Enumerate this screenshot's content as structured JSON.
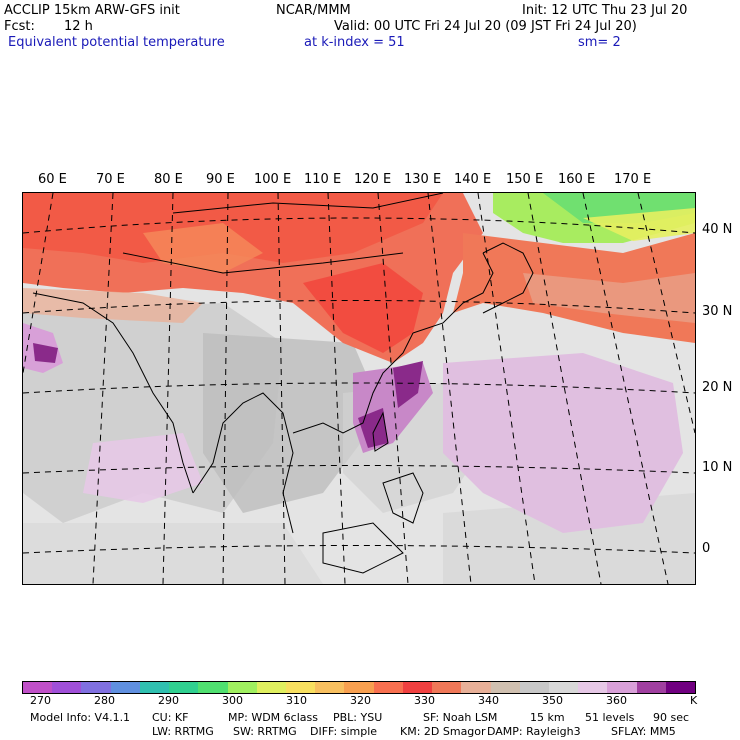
{
  "header": {
    "model": "ACCLIP 15km ARW-GFS init",
    "org": "NCAR/MMM",
    "init": "Init: 12 UTC Thu 23 Jul 20",
    "fcst_label": "Fcst:",
    "fcst_value": "12 h",
    "valid": "Valid: 00 UTC Fri 24 Jul 20 (09 JST Fri 24 Jul 20)",
    "field": "Equivalent potential temperature",
    "level": "at k-index =  51",
    "smooth": "sm= 2"
  },
  "map": {
    "lon_labels": [
      "60 E",
      "70 E",
      "80 E",
      "90 E",
      "100 E",
      "110 E",
      "120 E",
      "130 E",
      "140 E",
      "150 E",
      "160 E",
      "170 E"
    ],
    "lat_labels": [
      "40 N",
      "30 N",
      "20 N",
      "10 N",
      "0"
    ]
  },
  "colorbar": {
    "colors": [
      "#c050c8",
      "#a050d8",
      "#8070e0",
      "#6090e0",
      "#30c0b0",
      "#30d090",
      "#50e070",
      "#a0f060",
      "#e0f060",
      "#f8e060",
      "#f8c060",
      "#f8a050",
      "#f87050",
      "#f04040",
      "#f07858",
      "#e8b098",
      "#d0c0b0",
      "#c8c8c8",
      "#d8d8d8",
      "#e6c8e6",
      "#d8a0d8",
      "#a040a0",
      "#700080"
    ],
    "ticks": [
      "270",
      "280",
      "290",
      "300",
      "310",
      "320",
      "330",
      "340",
      "350",
      "360"
    ],
    "unit": "K"
  },
  "footer": {
    "line1": [
      "Model Info: V4.1.1",
      "CU: KF",
      "MP: WDM 6class",
      "PBL: YSU",
      "SF: Noah LSM",
      "15 km",
      "51 levels",
      "90 sec"
    ],
    "line2": [
      "LW: RRTMG",
      "SW: RRTMG",
      "DIFF: simple",
      "KM: 2D Smagor",
      "DAMP: Rayleigh3",
      "SFLAY: MM5"
    ]
  }
}
